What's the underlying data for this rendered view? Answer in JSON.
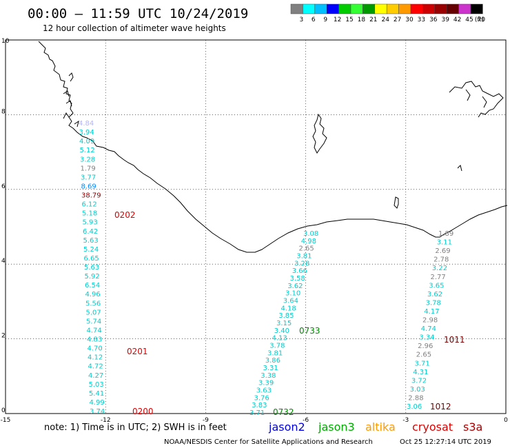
{
  "header": {
    "title": "00:00 – 11:59 UTC 10/24/2019",
    "subtitle": "12 hour collection of altimeter wave heights"
  },
  "legend": {
    "colors": [
      "#808080",
      "#00ffff",
      "#00bfff",
      "#0000ff",
      "#00cc00",
      "#33ff33",
      "#009900",
      "#ffff00",
      "#ffcc00",
      "#ff9900",
      "#ff0000",
      "#cc0000",
      "#990000",
      "#660000",
      "#cc33cc",
      "#000000"
    ],
    "labels": [
      "3",
      "6",
      "9",
      "12",
      "15",
      "18",
      "21",
      "24",
      "27",
      "30",
      "33",
      "36",
      "39",
      "42",
      "45",
      "70"
    ],
    "unit": "(ft)"
  },
  "axes": {
    "x_ticks": [
      "-15",
      "-12",
      "-9",
      "-6",
      "-3",
      "0"
    ],
    "y_ticks": [
      "0",
      "2",
      "4",
      "6",
      "8",
      "10"
    ]
  },
  "tracks": [
    {
      "name": "track-0202-0200",
      "points": [
        {
          "v": "4.84",
          "c": "#b3b3ff"
        },
        {
          "v": "3.94",
          "c": "#00cccc"
        },
        {
          "v": "4.09",
          "c": "#00cccc"
        },
        {
          "v": "5.12",
          "c": "#00cccc"
        },
        {
          "v": "3.28",
          "c": "#00cccc"
        },
        {
          "v": "1.79",
          "c": "#808080"
        },
        {
          "v": "3.77",
          "c": "#00cccc"
        },
        {
          "v": "8.69",
          "c": "#0088ff"
        },
        {
          "v": "38.79",
          "c": "#880000"
        },
        {
          "v": "6.12",
          "c": "#00cccc"
        },
        {
          "v": "5.18",
          "c": "#00cccc"
        },
        {
          "v": "5.93",
          "c": "#00cccc"
        },
        {
          "v": "6.42",
          "c": "#00cccc"
        },
        {
          "v": "5.63",
          "c": "#00cccc"
        },
        {
          "v": "5.24",
          "c": "#00cccc"
        },
        {
          "v": "6.65",
          "c": "#00cccc"
        },
        {
          "v": "5.63",
          "c": "#00cccc"
        },
        {
          "v": "5.92",
          "c": "#00cccc"
        },
        {
          "v": "6.54",
          "c": "#00cccc"
        },
        {
          "v": "4.96",
          "c": "#00cccc"
        },
        {
          "v": "5.56",
          "c": "#00cccc"
        },
        {
          "v": "5.07",
          "c": "#00cccc"
        },
        {
          "v": "5.74",
          "c": "#00cccc"
        },
        {
          "v": "4.74",
          "c": "#00cccc"
        },
        {
          "v": "4.83",
          "c": "#00cccc"
        },
        {
          "v": "4.70",
          "c": "#00cccc"
        },
        {
          "v": "4.12",
          "c": "#00cccc"
        },
        {
          "v": "4.72",
          "c": "#00cccc"
        },
        {
          "v": "4.27",
          "c": "#00cccc"
        },
        {
          "v": "5.03",
          "c": "#00cccc"
        },
        {
          "v": "5.41",
          "c": "#00cccc"
        },
        {
          "v": "4.99",
          "c": "#00cccc"
        },
        {
          "v": "3.74",
          "c": "#00cccc"
        }
      ]
    },
    {
      "name": "track-0733-0732",
      "points": [
        {
          "v": "3.08",
          "c": "#00cccc"
        },
        {
          "v": "4.98",
          "c": "#00cccc"
        },
        {
          "v": "2.65",
          "c": "#808080"
        },
        {
          "v": "3.81",
          "c": "#00cccc"
        },
        {
          "v": "3.28",
          "c": "#00cccc"
        },
        {
          "v": "3.66",
          "c": "#00cccc"
        },
        {
          "v": "3.58",
          "c": "#00cccc"
        },
        {
          "v": "3.62",
          "c": "#00cccc"
        },
        {
          "v": "3.10",
          "c": "#00cccc"
        },
        {
          "v": "3.64",
          "c": "#00cccc"
        },
        {
          "v": "4.18",
          "c": "#00cccc"
        },
        {
          "v": "3.85",
          "c": "#00cccc"
        },
        {
          "v": "3.15",
          "c": "#00cccc"
        },
        {
          "v": "3.40",
          "c": "#00cccc"
        },
        {
          "v": "4.13",
          "c": "#00cccc"
        },
        {
          "v": "3.78",
          "c": "#00cccc"
        },
        {
          "v": "3.81",
          "c": "#00cccc"
        },
        {
          "v": "3.86",
          "c": "#00cccc"
        },
        {
          "v": "3.31",
          "c": "#00cccc"
        },
        {
          "v": "3.38",
          "c": "#00cccc"
        },
        {
          "v": "3.39",
          "c": "#00cccc"
        },
        {
          "v": "3.63",
          "c": "#00cccc"
        },
        {
          "v": "3.76",
          "c": "#00cccc"
        },
        {
          "v": "3.83",
          "c": "#00cccc"
        },
        {
          "v": "3.71",
          "c": "#00cccc"
        }
      ]
    },
    {
      "name": "track-1011-1012",
      "points": [
        {
          "v": "1.89",
          "c": "#808080"
        },
        {
          "v": "3.11",
          "c": "#00cccc"
        },
        {
          "v": "2.69",
          "c": "#808080"
        },
        {
          "v": "2.78",
          "c": "#808080"
        },
        {
          "v": "3.22",
          "c": "#00cccc"
        },
        {
          "v": "2.77",
          "c": "#808080"
        },
        {
          "v": "3.65",
          "c": "#00cccc"
        },
        {
          "v": "3.62",
          "c": "#00cccc"
        },
        {
          "v": "3.78",
          "c": "#00cccc"
        },
        {
          "v": "4.17",
          "c": "#00cccc"
        },
        {
          "v": "2.98",
          "c": "#808080"
        },
        {
          "v": "4.74",
          "c": "#00cccc"
        },
        {
          "v": "3.34",
          "c": "#00cccc"
        },
        {
          "v": "2.96",
          "c": "#808080"
        },
        {
          "v": "2.65",
          "c": "#808080"
        },
        {
          "v": "3.71",
          "c": "#00cccc"
        },
        {
          "v": "4.31",
          "c": "#00cccc"
        },
        {
          "v": "3.72",
          "c": "#00cccc"
        },
        {
          "v": "3.03",
          "c": "#00cccc"
        },
        {
          "v": "2.88",
          "c": "#808080"
        },
        {
          "v": "3.06",
          "c": "#00cccc"
        }
      ]
    }
  ],
  "times": [
    {
      "v": "0202",
      "c": "#dd0000"
    },
    {
      "v": "0201",
      "c": "#dd0000"
    },
    {
      "v": "0200",
      "c": "#dd0000"
    },
    {
      "v": "0733",
      "c": "#008800"
    },
    {
      "v": "0732",
      "c": "#008800"
    },
    {
      "v": "1011",
      "c": "#770000"
    },
    {
      "v": "1012",
      "c": "#770000"
    }
  ],
  "footer": {
    "note": "note: 1) Time is in UTC; 2) SWH is in feet",
    "satellites": [
      {
        "v": "jason2",
        "c": "#0000dd"
      },
      {
        "v": "jason3",
        "c": "#00aa00"
      },
      {
        "v": "altika",
        "c": "#ff9900"
      },
      {
        "v": "cryosat",
        "c": "#dd0000"
      },
      {
        "v": "s3a",
        "c": "#aa0000"
      }
    ],
    "credit": "NOAA/NESDIS Center for Satellite Applications and Research",
    "timestamp": "Oct 25 12:27:14 UTC 2019"
  }
}
